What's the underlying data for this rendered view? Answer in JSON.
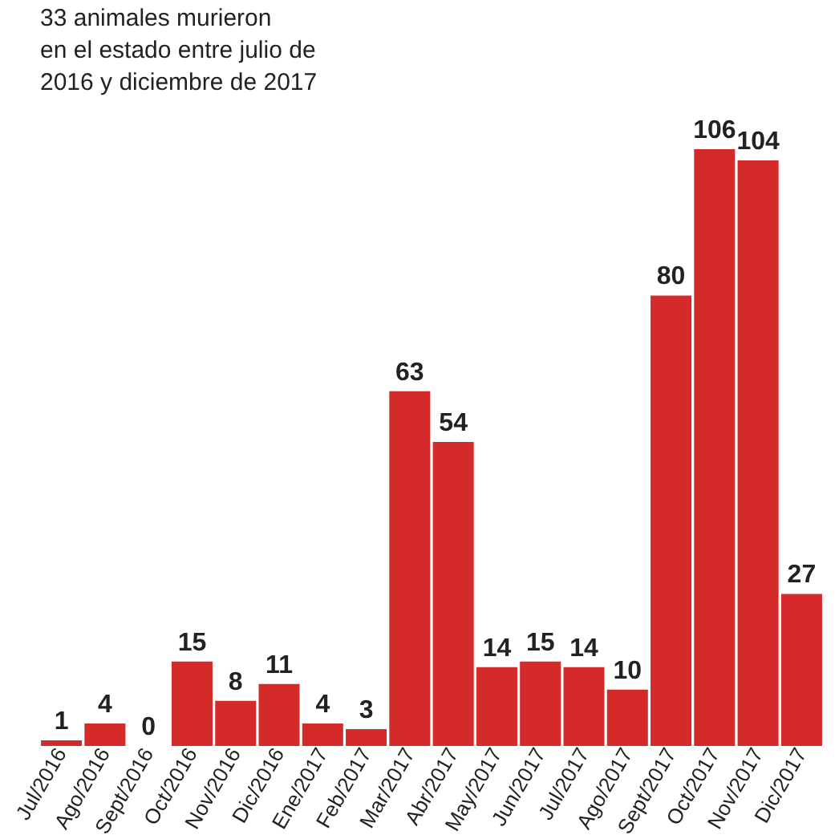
{
  "chart_data": {
    "type": "bar",
    "title": "33 animales murieron\nen el estado entre julio de\n2016 y diciembre de 2017",
    "categories": [
      "Jul/2016",
      "Ago/2016",
      "Sept/2016",
      "Oct/2016",
      "Nov/2016",
      "Dic/2016",
      "Ene/2017",
      "Feb/2017",
      "Mar/2017",
      "Abr/2017",
      "May/2017",
      "Jun/2017",
      "Jul/2017",
      "Ago/2017",
      "Sept/2017",
      "Oct/2017",
      "Nov/2017",
      "Dic/2017"
    ],
    "values": [
      1,
      4,
      0,
      15,
      8,
      11,
      4,
      3,
      63,
      54,
      14,
      15,
      14,
      10,
      80,
      106,
      104,
      27
    ],
    "color": "#d42a2a",
    "data_labels": true,
    "grid": false
  }
}
